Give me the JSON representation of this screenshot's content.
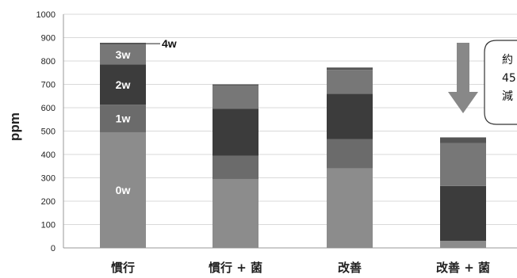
{
  "chart_data": {
    "type": "bar",
    "stacked": true,
    "ylabel": "ppm",
    "ylim": [
      0,
      1000
    ],
    "yticks": [
      0,
      100,
      200,
      300,
      400,
      500,
      600,
      700,
      800,
      900,
      1000
    ],
    "grid": true,
    "categories": [
      "慣行",
      "慣行 + 菌",
      "改善",
      "改善 + 菌"
    ],
    "series": [
      {
        "name": "0w",
        "color": "#8c8c8c",
        "values": [
          495,
          295,
          340,
          30
        ]
      },
      {
        "name": "1w",
        "color": "#6b6b6b",
        "values": [
          118,
          100,
          125,
          0
        ]
      },
      {
        "name": "2w",
        "color": "#3c3c3c",
        "values": [
          172,
          200,
          195,
          235
        ]
      },
      {
        "name": "3w",
        "color": "#777777",
        "values": [
          85,
          100,
          102,
          183
        ]
      },
      {
        "name": "4w",
        "color": "#555555",
        "values": [
          8,
          5,
          10,
          25
        ]
      }
    ],
    "segment_labels_on_category": "慣行",
    "annotation": {
      "lines": [
        "約",
        "45",
        "減"
      ],
      "arrow_color": "#888888",
      "target_category": "改善 + 菌"
    }
  }
}
